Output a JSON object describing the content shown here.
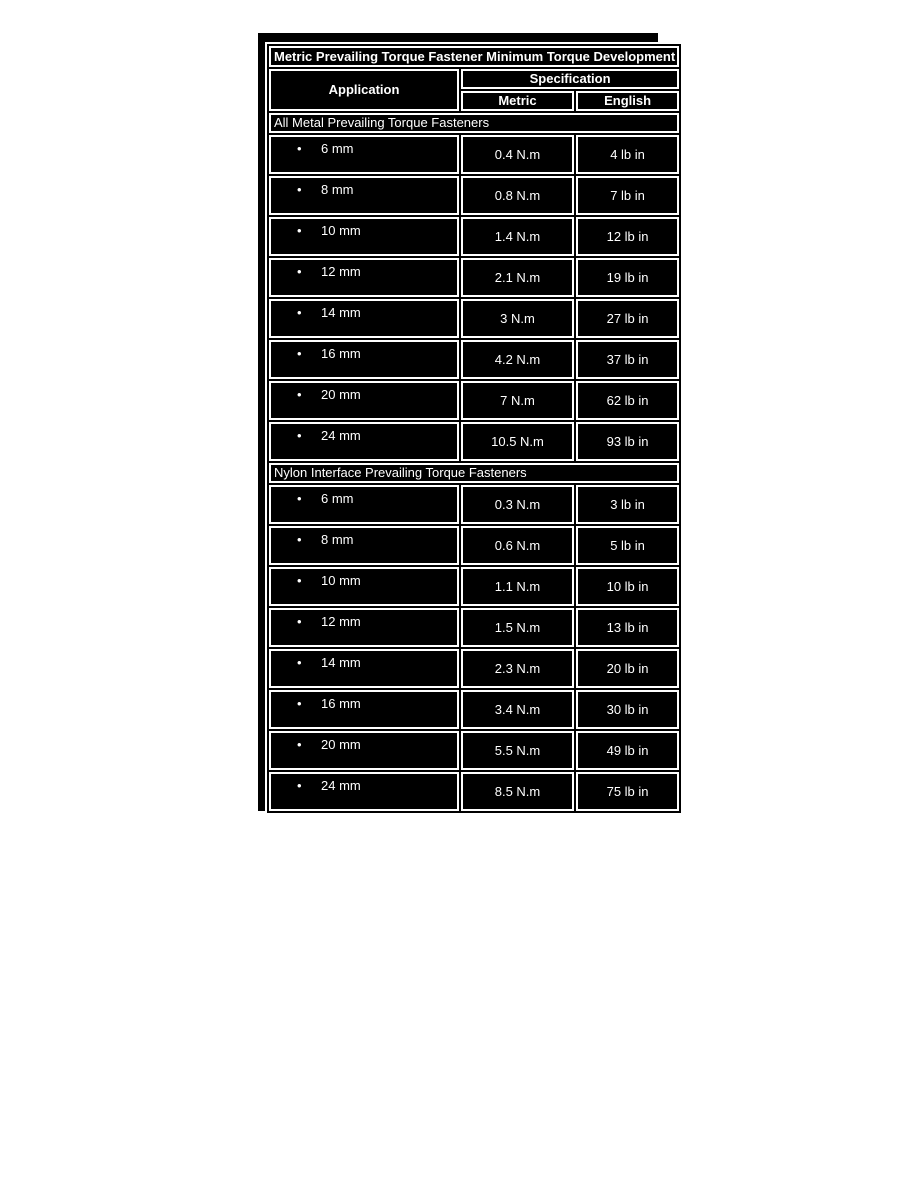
{
  "page": {
    "background_color": "#ffffff"
  },
  "panel": {
    "background_color": "#000000",
    "border_color": "#ffffff",
    "text_color": "#ffffff"
  },
  "icons": {
    "bullet": "•"
  },
  "table": {
    "title": "Metric Prevailing Torque Fastener Minimum Torque Development",
    "columns": {
      "application": "Application",
      "specification": "Specification",
      "metric": "Metric",
      "english": "English"
    },
    "sections": [
      {
        "title": "All Metal Prevailing Torque Fasteners",
        "rows": [
          {
            "application": "6 mm",
            "metric": "0.4 N.m",
            "english": "4 lb in"
          },
          {
            "application": "8 mm",
            "metric": "0.8 N.m",
            "english": "7 lb in"
          },
          {
            "application": "10 mm",
            "metric": "1.4 N.m",
            "english": "12 lb in"
          },
          {
            "application": "12 mm",
            "metric": "2.1 N.m",
            "english": "19 lb in"
          },
          {
            "application": "14 mm",
            "metric": "3 N.m",
            "english": "27 lb in"
          },
          {
            "application": "16 mm",
            "metric": "4.2 N.m",
            "english": "37 lb in"
          },
          {
            "application": "20 mm",
            "metric": "7 N.m",
            "english": "62 lb in"
          },
          {
            "application": "24 mm",
            "metric": "10.5 N.m",
            "english": "93 lb in"
          }
        ]
      },
      {
        "title": "Nylon Interface Prevailing Torque Fasteners",
        "rows": [
          {
            "application": "6 mm",
            "metric": "0.3 N.m",
            "english": "3 lb in"
          },
          {
            "application": "8 mm",
            "metric": "0.6 N.m",
            "english": "5 lb in"
          },
          {
            "application": "10 mm",
            "metric": "1.1 N.m",
            "english": "10 lb in"
          },
          {
            "application": "12 mm",
            "metric": "1.5 N.m",
            "english": "13 lb in"
          },
          {
            "application": "14 mm",
            "metric": "2.3 N.m",
            "english": "20 lb in"
          },
          {
            "application": "16 mm",
            "metric": "3.4 N.m",
            "english": "30 lb in"
          },
          {
            "application": "20 mm",
            "metric": "5.5 N.m",
            "english": "49 lb in"
          },
          {
            "application": "24 mm",
            "metric": "8.5 N.m",
            "english": "75 lb in"
          }
        ]
      }
    ]
  }
}
